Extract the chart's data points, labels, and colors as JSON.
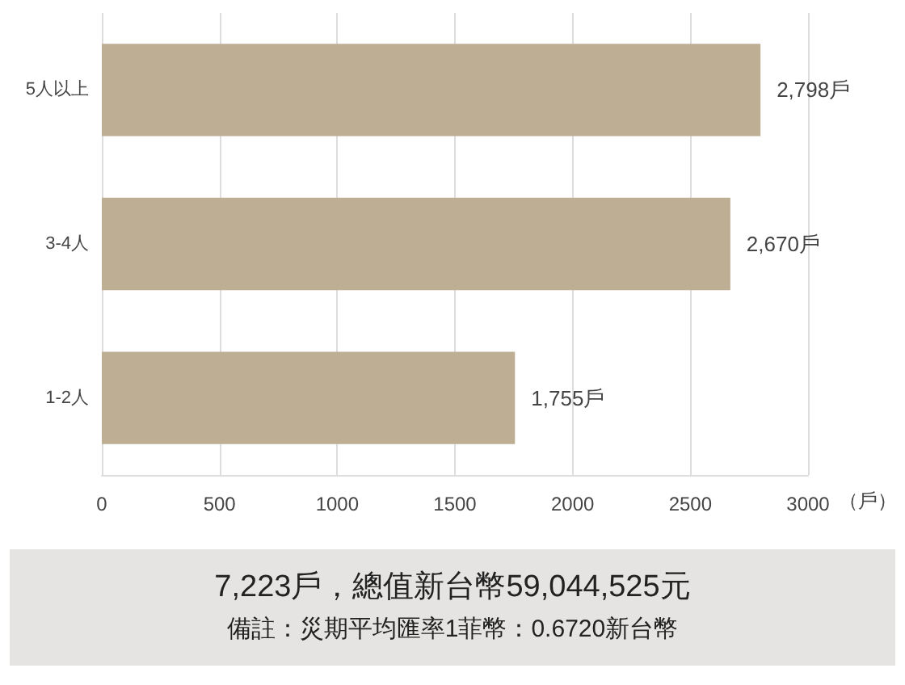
{
  "chart_data": {
    "type": "bar",
    "orientation": "horizontal",
    "categories": [
      "5人以上",
      "3-4人",
      "1-2人"
    ],
    "values": [
      2798,
      2670,
      1755
    ],
    "color": "#bdae94",
    "value_labels": [
      "2,798戶",
      "2,670戶",
      "1,755戶"
    ],
    "xlabel": "（戶）",
    "xlim": [
      0,
      3000
    ],
    "xticks": [
      0,
      500,
      1000,
      1500,
      2000,
      2500,
      3000
    ],
    "grid": "x",
    "annotations": [
      "7,223戶，總值新台幣59,044,525元",
      "備註：災期平均匯率1菲幣：0.6720新台幣"
    ]
  }
}
